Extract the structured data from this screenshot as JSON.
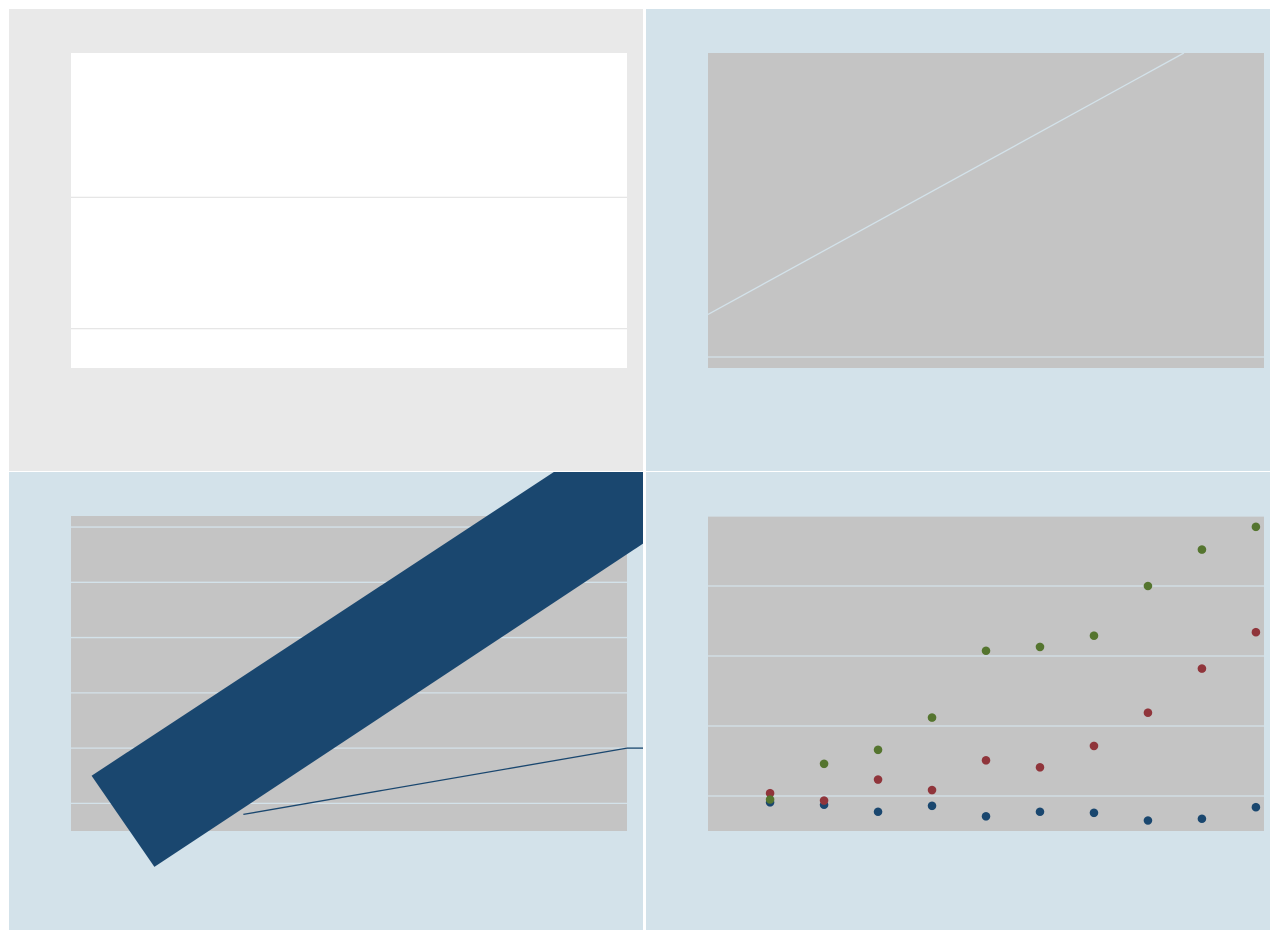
{
  "colors": {
    "panel_bg_gray": "#e9e9e9",
    "panel_bg_blue": "#d3e2ea",
    "plot_white": "#ffffff",
    "plot_gray": "#c4c4c4",
    "grid_light": "#e6e6e6",
    "grid_blue": "#d3e2ea",
    "navy": "#1a476f",
    "maroon": "#90353b",
    "olive": "#55752f",
    "separator": "#ffffff"
  },
  "chart_data": [
    {
      "type": "line",
      "title": "",
      "xlabel": "",
      "ylabel": "",
      "grid": true,
      "ylim": [
        0,
        2.4
      ],
      "xlim": [
        0,
        1
      ],
      "yticks": [
        0.3,
        1.3
      ],
      "series": []
    },
    {
      "type": "line",
      "title": "",
      "xlabel": "",
      "ylabel": "",
      "grid": true,
      "xlim": [
        0,
        10
      ],
      "ylim": [
        0,
        10
      ],
      "yticks": [
        0.35
      ],
      "series": [
        {
          "color": "#d3e2ea",
          "x": [
            0,
            8.56
          ],
          "y": [
            1.7,
            10
          ]
        }
      ]
    },
    {
      "type": "line",
      "title": "",
      "xlabel": "",
      "ylabel": "",
      "grid": true,
      "xlim": [
        0,
        10
      ],
      "ylim": [
        0,
        5.7
      ],
      "yticks": [
        0.5,
        1.5,
        2.5,
        3.5,
        4.5,
        5.5
      ],
      "series": [
        {
          "color": "#1a476f",
          "x": [
            3.1,
            10
          ],
          "y": [
            0.3,
            1.5
          ]
        },
        {
          "color": "#1a476f",
          "x": [
            0.37,
            1.5,
            11.04,
            9.9
          ],
          "y": [
            1.0,
            -0.65,
            5.7,
            7.3
          ]
        }
      ]
    },
    {
      "type": "scatter",
      "title": "",
      "xlabel": "",
      "ylabel": "",
      "grid": true,
      "xlim": [
        0,
        10.3
      ],
      "ylim": [
        0,
        9
      ],
      "yticks": [
        1,
        3,
        5,
        7,
        9
      ],
      "x": [
        1.15,
        2.15,
        3.15,
        4.15,
        5.15,
        6.15,
        7.15,
        8.15,
        9.15,
        10.15
      ],
      "series": [
        {
          "color": "#1a476f",
          "values": [
            0.82,
            0.75,
            0.55,
            0.72,
            0.42,
            0.55,
            0.52,
            0.3,
            0.35,
            0.68
          ]
        },
        {
          "color": "#90353b",
          "values": [
            1.08,
            0.87,
            1.47,
            1.17,
            2.02,
            1.82,
            2.43,
            3.38,
            4.64,
            5.68
          ]
        },
        {
          "color": "#55752f",
          "values": [
            0.9,
            1.92,
            2.32,
            3.24,
            5.15,
            5.26,
            5.58,
            7.0,
            8.04,
            8.69
          ]
        }
      ]
    }
  ]
}
